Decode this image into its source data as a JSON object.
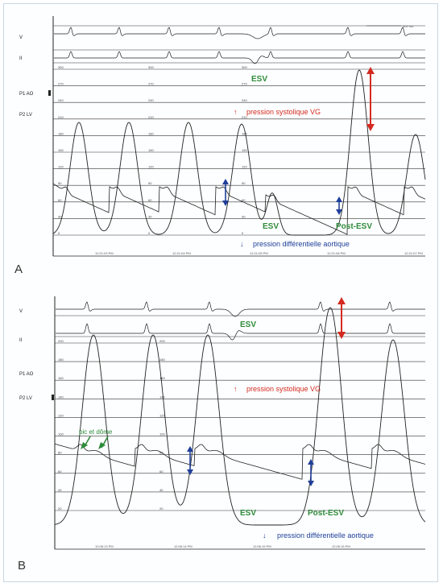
{
  "panels": [
    {
      "letter": "A",
      "channels": {
        "v": "V",
        "ii": "II",
        "p1": "P1 AO",
        "p2": "P2 LV"
      },
      "scale_label": "500 ms",
      "ticks": [
        "300",
        "270",
        "240",
        "210",
        "180",
        "150",
        "120",
        "90",
        "60",
        "30",
        "0"
      ],
      "times": [
        "12:21:03 PM",
        "12:21:04 PM",
        "12:21:05 PM",
        "12:21:06 PM",
        "12:21:07 PM"
      ],
      "annotations": {
        "esv_top": "ESV",
        "lv_pressure": "pression  systolique VG",
        "esv_bottom": "ESV",
        "post_esv": "Post-ESV",
        "aortic_pressure": "pression différentielle aortique"
      },
      "colors": {
        "green": "#2e8b3a",
        "red": "#d42a20",
        "blue": "#1f3f99"
      }
    },
    {
      "letter": "B",
      "channels": {
        "v": "V",
        "ii": "II",
        "p1": "P1 AO",
        "p2": "P2 LV"
      },
      "ticks": [
        "200",
        "180",
        "160",
        "140",
        "120",
        "100",
        "80",
        "60",
        "40",
        "20"
      ],
      "times": [
        "12:06:13 PM",
        "12:06:14 PM",
        "12:06:15 PM",
        "12:06:16 PM"
      ],
      "annotations": {
        "esv_top": "ESV",
        "lv_pressure": "pression  systolique VG",
        "pic_dome": "pic et dôme",
        "esv_bottom": "ESV",
        "post_esv": "Post-ESV",
        "aortic_pressure": "pression différentielle aortique"
      },
      "colors": {
        "green": "#2e8b3a",
        "red": "#d42a20",
        "blue": "#1f3f99"
      }
    }
  ]
}
